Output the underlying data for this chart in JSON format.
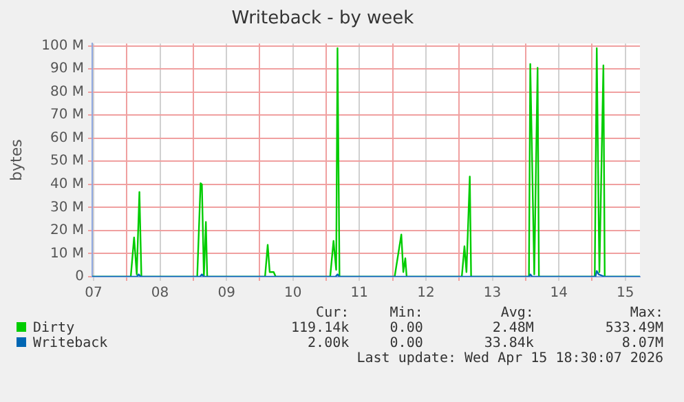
{
  "chart_data": {
    "type": "line",
    "title": "Writeback - by week",
    "ylabel": "bytes",
    "xlim": [
      7.48,
      15.72
    ],
    "xticks": [
      {
        "value": 7.5,
        "label": "07"
      },
      {
        "value": 8,
        "label": null
      },
      {
        "value": 8.5,
        "label": "08"
      },
      {
        "value": 9,
        "label": null
      },
      {
        "value": 9.5,
        "label": "09"
      },
      {
        "value": 10,
        "label": null
      },
      {
        "value": 10.5,
        "label": "10"
      },
      {
        "value": 11,
        "label": null
      },
      {
        "value": 11.5,
        "label": "11"
      },
      {
        "value": 12,
        "label": null
      },
      {
        "value": 12.5,
        "label": "12"
      },
      {
        "value": 13,
        "label": null
      },
      {
        "value": 13.5,
        "label": "13"
      },
      {
        "value": 14,
        "label": null
      },
      {
        "value": 14.5,
        "label": "14"
      },
      {
        "value": 15,
        "label": null
      },
      {
        "value": 15.5,
        "label": "15"
      }
    ],
    "ylim": [
      0,
      101
    ],
    "yticks": [
      {
        "value": 0,
        "label": "0"
      },
      {
        "value": 10,
        "label": "10 M"
      },
      {
        "value": 20,
        "label": "20 M"
      },
      {
        "value": 30,
        "label": "30 M"
      },
      {
        "value": 40,
        "label": "40 M"
      },
      {
        "value": 50,
        "label": "50 M"
      },
      {
        "value": 60,
        "label": "60 M"
      },
      {
        "value": 70,
        "label": "70 M"
      },
      {
        "value": 80,
        "label": "80 M"
      },
      {
        "value": 90,
        "label": "90 M"
      },
      {
        "value": 100,
        "label": "100 M"
      }
    ],
    "grid": true,
    "legend": "bottom",
    "marker": "none",
    "line_style": "solid",
    "series": [
      {
        "name": "Dirty",
        "color": "#00cc00",
        "x": [
          7.48,
          8.06,
          8.11,
          8.15,
          8.19,
          8.22,
          9.06,
          9.11,
          9.13,
          9.16,
          9.19,
          9.21,
          10.08,
          10.12,
          10.15,
          10.21,
          10.24,
          11.06,
          11.11,
          11.15,
          11.17,
          11.2,
          12.03,
          12.13,
          12.16,
          12.19,
          12.21,
          13.04,
          13.08,
          13.11,
          13.16,
          13.18,
          14.05,
          14.07,
          14.13,
          14.18,
          14.2,
          15.04,
          15.07,
          15.1,
          15.11,
          15.17,
          15.19,
          15.72
        ],
        "values": [
          0,
          0,
          17,
          1,
          36.7,
          0,
          0,
          40.5,
          40,
          0,
          23.7,
          0,
          0,
          13.8,
          2,
          2,
          0,
          0,
          15.5,
          3,
          99,
          0,
          0,
          18.3,
          2,
          8,
          0,
          0,
          13.2,
          2,
          43.4,
          0,
          0,
          92.1,
          1,
          90.5,
          0,
          0,
          99,
          22,
          2,
          91.5,
          0,
          0
        ]
      },
      {
        "name": "Writeback",
        "color": "#0066b3",
        "x": [
          7.48,
          8.15,
          8.18,
          8.21,
          9.1,
          9.13,
          9.16,
          11.14,
          11.17,
          11.2,
          14.05,
          14.07,
          14.1,
          15.05,
          15.07,
          15.1,
          15.19,
          15.72
        ],
        "values": [
          0,
          0,
          1,
          0,
          0,
          1,
          0,
          0,
          1,
          0,
          0,
          1,
          0,
          0,
          2.5,
          1,
          0,
          0
        ]
      }
    ],
    "annotations": [
      "Cur:",
      "Min:",
      "Avg:",
      "Max:",
      "119.14k",
      "0.00",
      "2.48M",
      "533.49M",
      "2.00k",
      "0.00",
      "33.84k",
      "8.07M",
      "Last update: Wed Apr 15 18:30:07 2026"
    ]
  }
}
